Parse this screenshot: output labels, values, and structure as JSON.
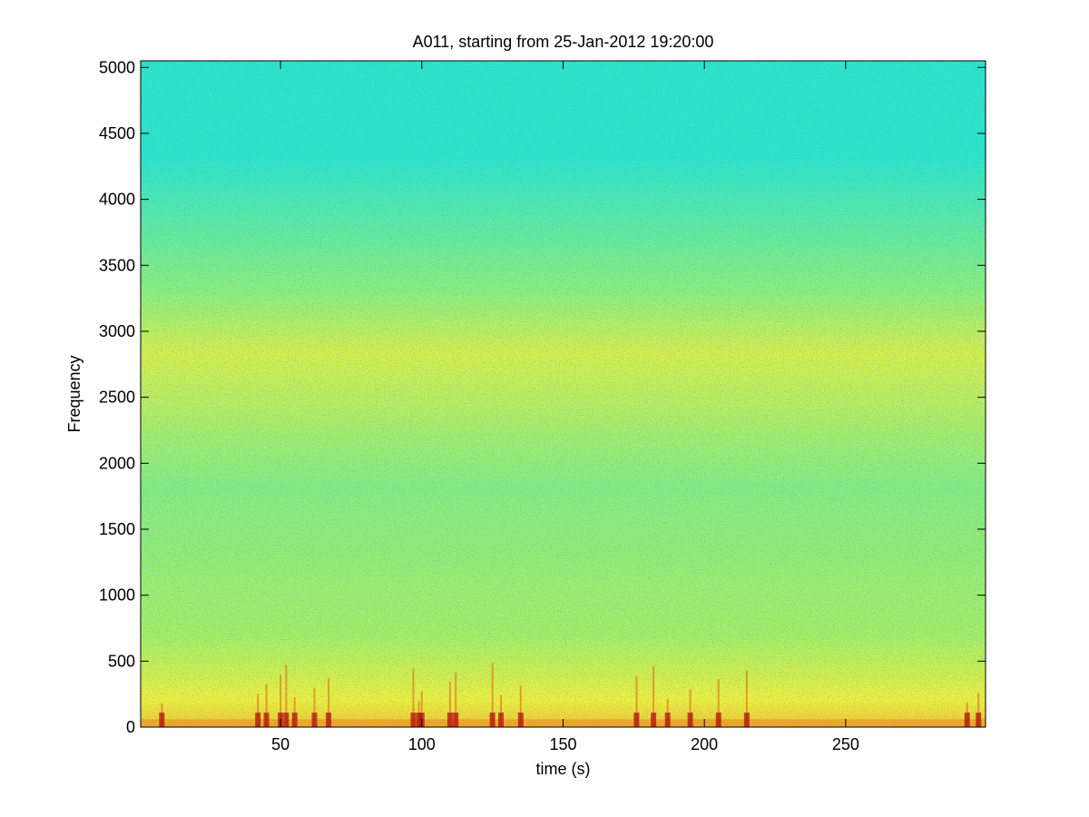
{
  "chart_data": {
    "type": "heatmap",
    "title": "A011, starting from 25-Jan-2012 19:20:00",
    "xlabel": "time (s)",
    "ylabel": "Frequency",
    "xlim": [
      0.5,
      299.5
    ],
    "ylim": [
      0,
      5050
    ],
    "x_ticks": [
      50,
      100,
      150,
      200,
      250
    ],
    "y_ticks": [
      0,
      500,
      1000,
      1500,
      2000,
      2500,
      3000,
      3500,
      4000,
      4500,
      5000
    ],
    "colormap": "jet",
    "grid": false,
    "legend": "none",
    "intensity_bands": [
      {
        "freq_range": [
          3600,
          5050
        ],
        "level": "low",
        "color": "#2de6c8"
      },
      {
        "freq_range": [
          3000,
          3600
        ],
        "level": "medium-low",
        "color": "#8df07a"
      },
      {
        "freq_range": [
          2650,
          3000
        ],
        "level": "medium-high",
        "color": "#d8f04a"
      },
      {
        "freq_range": [
          1000,
          2650
        ],
        "level": "medium",
        "color": "#86ed7e"
      },
      {
        "freq_range": [
          400,
          1000
        ],
        "level": "medium",
        "color": "#a6f064"
      },
      {
        "freq_range": [
          0,
          400
        ],
        "level": "high",
        "color": "#f0f03a"
      }
    ],
    "transient_events_s": [
      8,
      42,
      45,
      50,
      52,
      55,
      62,
      67,
      97,
      99,
      100,
      110,
      112,
      125,
      128,
      135,
      176,
      182,
      187,
      195,
      205,
      215,
      293,
      297
    ]
  }
}
